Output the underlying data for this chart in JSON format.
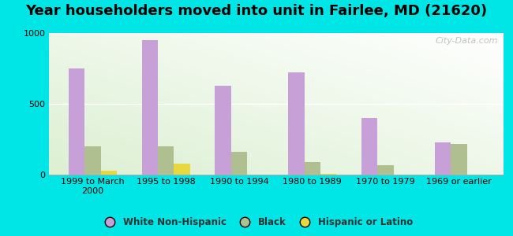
{
  "title": "Year householders moved into unit in Fairlee, MD (21620)",
  "categories": [
    "1999 to March\n2000",
    "1995 to 1998",
    "1990 to 1994",
    "1980 to 1989",
    "1970 to 1979",
    "1969 or earlier"
  ],
  "white": [
    750,
    950,
    630,
    720,
    400,
    230
  ],
  "black": [
    200,
    200,
    160,
    90,
    65,
    215
  ],
  "hispanic": [
    30,
    80,
    0,
    5,
    0,
    0
  ],
  "white_color": "#c8a0d8",
  "black_color": "#b0bf90",
  "hispanic_color": "#e8d840",
  "ylim": [
    0,
    1000
  ],
  "yticks": [
    0,
    500,
    1000
  ],
  "bar_width": 0.22,
  "outer_background": "#00e5e5",
  "watermark": "City-Data.com",
  "legend_labels": [
    "White Non-Hispanic",
    "Black",
    "Hispanic or Latino"
  ],
  "title_fontsize": 13,
  "tick_fontsize": 8
}
